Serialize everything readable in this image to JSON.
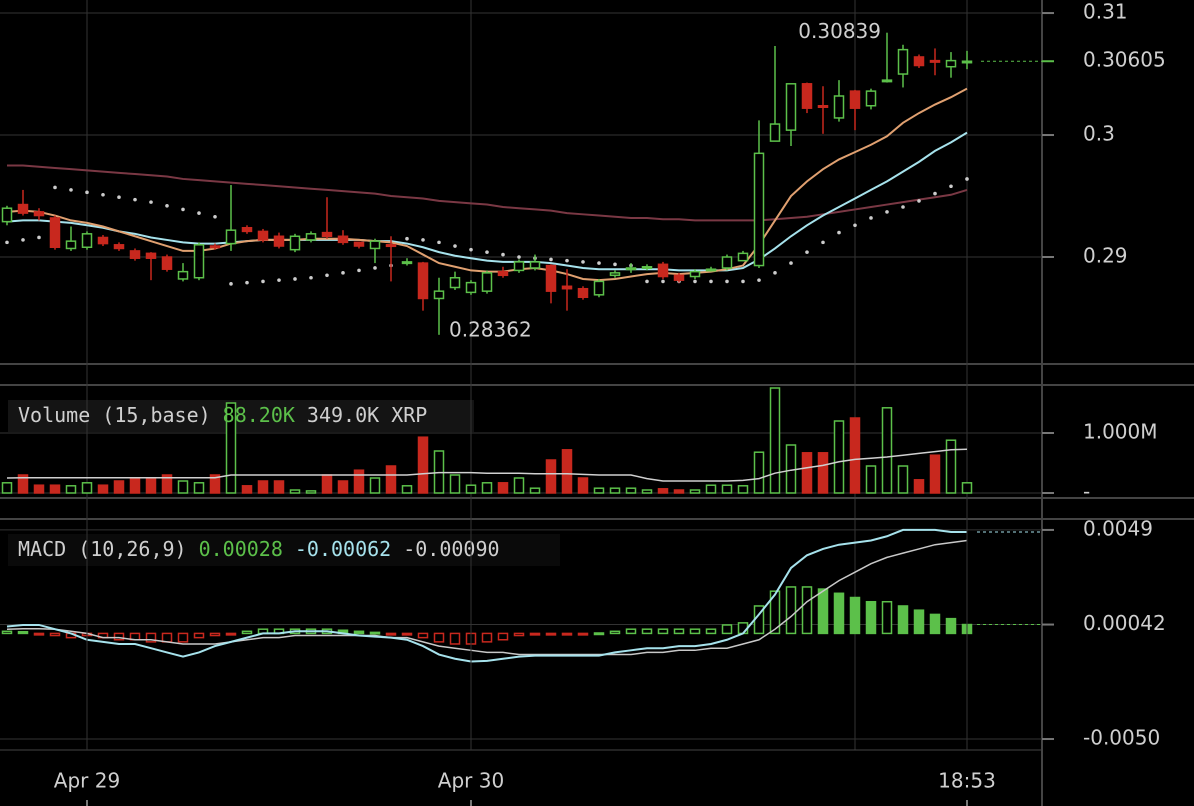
{
  "chart_data": [
    {
      "type": "candlestick",
      "open": [
        0.2929,
        0.2943,
        0.2937,
        0.2932,
        0.2907,
        0.2908,
        0.2916,
        0.291,
        0.2905,
        0.2903,
        0.29,
        0.2882,
        0.2883,
        0.2909,
        0.2911,
        0.2924,
        0.2921,
        0.2917,
        0.2906,
        0.2914,
        0.292,
        0.2917,
        0.2912,
        0.2907,
        0.291,
        0.2895,
        0.2895,
        0.2866,
        0.2875,
        0.2871,
        0.2872,
        0.2888,
        0.2889,
        0.2891,
        0.2893,
        0.2876,
        0.2874,
        0.2869,
        0.2885,
        0.289,
        0.2891,
        0.2894,
        0.2885,
        0.2884,
        0.2889,
        0.2891,
        0.2897,
        0.2893,
        0.2995,
        0.3004,
        0.3042,
        0.3024,
        0.3014,
        0.3036,
        0.3024,
        0.3044,
        0.305,
        0.3064,
        0.3061,
        0.3056,
        0.306
      ],
      "high": [
        0.2942,
        0.2955,
        0.294,
        0.2934,
        0.2925,
        0.2921,
        0.2918,
        0.2912,
        0.2907,
        0.2904,
        0.2902,
        0.2895,
        0.2912,
        0.2911,
        0.2959,
        0.2926,
        0.2923,
        0.292,
        0.2919,
        0.2921,
        0.2949,
        0.2922,
        0.2911,
        0.2915,
        0.2917,
        0.2899,
        0.2896,
        0.2883,
        0.2888,
        0.2881,
        0.2889,
        0.2892,
        0.2898,
        0.2902,
        0.2894,
        0.289,
        0.2876,
        0.2882,
        0.2889,
        0.2895,
        0.2894,
        0.2896,
        0.2887,
        0.289,
        0.2892,
        0.2902,
        0.2905,
        0.3012,
        0.3073,
        0.3042,
        0.3043,
        0.304,
        0.3045,
        0.3037,
        0.3038,
        0.30839,
        0.3074,
        0.3066,
        0.3071,
        0.3068,
        0.3069
      ],
      "low": [
        0.2926,
        0.2934,
        0.293,
        0.2906,
        0.2905,
        0.2906,
        0.2909,
        0.2905,
        0.2897,
        0.2881,
        0.2888,
        0.288,
        0.2881,
        0.2906,
        0.2905,
        0.2919,
        0.2912,
        0.2907,
        0.2904,
        0.2912,
        0.2915,
        0.291,
        0.2907,
        0.2895,
        0.288,
        0.2893,
        0.2856,
        0.28362,
        0.2873,
        0.2869,
        0.287,
        0.2883,
        0.2887,
        0.2889,
        0.2862,
        0.2856,
        0.2865,
        0.2867,
        0.2883,
        0.2887,
        0.2889,
        0.2882,
        0.2879,
        0.2882,
        0.2888,
        0.2889,
        0.2897,
        0.2891,
        0.2995,
        0.2991,
        0.3018,
        0.3001,
        0.3011,
        0.3004,
        0.3021,
        0.3043,
        0.3039,
        0.3055,
        0.3049,
        0.3047,
        0.3054
      ],
      "close": [
        0.294,
        0.2936,
        0.2934,
        0.2908,
        0.2913,
        0.2919,
        0.2911,
        0.2907,
        0.2899,
        0.2899,
        0.289,
        0.2888,
        0.291,
        0.2908,
        0.2922,
        0.2921,
        0.2914,
        0.2909,
        0.2917,
        0.2919,
        0.2917,
        0.2912,
        0.2909,
        0.2913,
        0.2909,
        0.2896,
        0.2866,
        0.2872,
        0.2883,
        0.2879,
        0.2887,
        0.2885,
        0.2896,
        0.2896,
        0.2872,
        0.2874,
        0.2867,
        0.288,
        0.2887,
        0.2891,
        0.2892,
        0.2884,
        0.2881,
        0.2888,
        0.289,
        0.29,
        0.2903,
        0.2985,
        0.3009,
        0.3042,
        0.3022,
        0.3023,
        0.3032,
        0.3022,
        0.3036,
        0.3045,
        0.307,
        0.3057,
        0.306,
        0.3061,
        0.30605
      ],
      "up_color": "#5cc04a",
      "down_color": "#c8281e",
      "overlays": [
        {
          "color": "#7a3844",
          "values": [
            0.2975,
            0.2975,
            0.2974,
            0.2973,
            0.2972,
            0.2971,
            0.297,
            0.2969,
            0.2968,
            0.2967,
            0.2966,
            0.2964,
            0.2963,
            0.2962,
            0.2961,
            0.296,
            0.2959,
            0.2958,
            0.2957,
            0.2956,
            0.2955,
            0.2954,
            0.2953,
            0.2952,
            0.295,
            0.2949,
            0.2948,
            0.2946,
            0.2945,
            0.2944,
            0.2943,
            0.2941,
            0.294,
            0.2939,
            0.2938,
            0.2936,
            0.2935,
            0.2934,
            0.2933,
            0.2932,
            0.2932,
            0.2931,
            0.2931,
            0.293,
            0.293,
            0.293,
            0.293,
            0.293,
            0.2931,
            0.2932,
            0.2933,
            0.2935,
            0.2937,
            0.2939,
            0.2941,
            0.2943,
            0.2945,
            0.2947,
            0.2949,
            0.2951,
            0.2955
          ]
        },
        {
          "color": "#a6e2ec",
          "values": [
            0.2929,
            0.293,
            0.293,
            0.2929,
            0.2928,
            0.2926,
            0.2924,
            0.2921,
            0.2919,
            0.2916,
            0.2914,
            0.2912,
            0.2911,
            0.2911,
            0.2912,
            0.2913,
            0.2914,
            0.2914,
            0.2914,
            0.2914,
            0.2914,
            0.2914,
            0.2914,
            0.2913,
            0.2913,
            0.2911,
            0.2908,
            0.2904,
            0.2901,
            0.2899,
            0.2897,
            0.2896,
            0.2896,
            0.2896,
            0.2895,
            0.2893,
            0.2891,
            0.289,
            0.289,
            0.289,
            0.289,
            0.289,
            0.2889,
            0.2889,
            0.2889,
            0.2889,
            0.2891,
            0.2898,
            0.2907,
            0.2917,
            0.2926,
            0.2934,
            0.2941,
            0.2948,
            0.2955,
            0.2962,
            0.297,
            0.2978,
            0.2987,
            0.2994,
            0.3002
          ]
        },
        {
          "color": "#e0a070",
          "values": [
            0.2937,
            0.2938,
            0.2937,
            0.2934,
            0.293,
            0.2928,
            0.2925,
            0.2921,
            0.2917,
            0.2913,
            0.2909,
            0.2905,
            0.2905,
            0.2907,
            0.2911,
            0.2913,
            0.2914,
            0.2914,
            0.2914,
            0.2915,
            0.2915,
            0.2915,
            0.2914,
            0.2913,
            0.2912,
            0.2909,
            0.2902,
            0.2895,
            0.2892,
            0.2889,
            0.2888,
            0.2888,
            0.289,
            0.2891,
            0.2889,
            0.2886,
            0.2882,
            0.2881,
            0.2882,
            0.2884,
            0.2886,
            0.2887,
            0.2886,
            0.2887,
            0.2888,
            0.289,
            0.2893,
            0.291,
            0.293,
            0.295,
            0.2962,
            0.2972,
            0.298,
            0.2986,
            0.2992,
            0.2999,
            0.301,
            0.3018,
            0.3025,
            0.3031,
            0.3038
          ]
        }
      ],
      "sar": {
        "color": "#cccccc",
        "values": [
          0.2912,
          0.2914,
          0.2916,
          0.2957,
          0.2955,
          0.2953,
          0.2951,
          0.2949,
          0.2947,
          0.2945,
          0.2942,
          0.2939,
          0.2936,
          0.2933,
          0.2878,
          0.2879,
          0.288,
          0.2881,
          0.2882,
          0.2883,
          0.2885,
          0.2887,
          0.2889,
          0.2891,
          0.2893,
          0.2915,
          0.2914,
          0.2912,
          0.2909,
          0.2906,
          0.2904,
          0.2902,
          0.29,
          0.2899,
          0.2898,
          0.2897,
          0.2896,
          0.2895,
          0.2894,
          0.2893,
          0.288,
          0.288,
          0.288,
          0.288,
          0.288,
          0.288,
          0.288,
          0.2881,
          0.2887,
          0.2895,
          0.2904,
          0.2912,
          0.292,
          0.2926,
          0.2932,
          0.2937,
          0.2941,
          0.2946,
          0.2952,
          0.2958,
          0.2964
        ]
      },
      "last": {
        "value": 0.30605,
        "color": "#5cc04a"
      },
      "annotations": [
        {
          "value": 0.30839,
          "x": 55
        },
        {
          "value": 0.28362,
          "x": 27
        }
      ],
      "ylim": [
        0.28131,
        0.31107
      ],
      "yticks": [
        0.29,
        0.3,
        0.31
      ],
      "grid": true
    },
    {
      "type": "bar",
      "legend": [
        {
          "text": "Volume (15,base)",
          "color": "#cfcfcf"
        },
        {
          "text": "88.20K",
          "color": "#5cc04a"
        },
        {
          "text": "349.0K XRP",
          "color": "#cfcfcf"
        }
      ],
      "values": [
        170000,
        300000,
        130000,
        130000,
        120000,
        170000,
        130000,
        200000,
        230000,
        230000,
        300000,
        200000,
        170000,
        300000,
        1500000,
        120000,
        200000,
        200000,
        50000,
        35000,
        300000,
        200000,
        380000,
        250000,
        450000,
        120000,
        930000,
        700000,
        300000,
        130000,
        170000,
        170000,
        250000,
        80000,
        550000,
        720000,
        250000,
        80000,
        80000,
        80000,
        50000,
        70000,
        50000,
        50000,
        130000,
        130000,
        120000,
        680000,
        1750000,
        800000,
        670000,
        670000,
        1200000,
        1250000,
        450000,
        1420000,
        450000,
        220000,
        630000,
        880000,
        170000
      ],
      "ma": {
        "color": "#d0d0d0",
        "values": [
          250000,
          255000,
          255000,
          255000,
          255000,
          255000,
          255000,
          255000,
          255000,
          255000,
          255000,
          255000,
          255000,
          255000,
          300000,
          300000,
          300000,
          300000,
          300000,
          300000,
          300000,
          300000,
          300000,
          300000,
          300000,
          300000,
          320000,
          340000,
          340000,
          340000,
          330000,
          330000,
          330000,
          320000,
          320000,
          320000,
          310000,
          300000,
          300000,
          300000,
          240000,
          200000,
          200000,
          200000,
          200000,
          200000,
          210000,
          240000,
          330000,
          380000,
          420000,
          460000,
          520000,
          560000,
          580000,
          600000,
          630000,
          660000,
          690000,
          720000,
          730000
        ]
      },
      "ylim": [
        -66667,
        1800000
      ],
      "yticks": [
        {
          "value": 0,
          "label": "-"
        },
        {
          "value": 1000000,
          "label": "1.000M"
        }
      ],
      "grid": true
    },
    {
      "type": "macd",
      "legend": [
        {
          "text": "MACD (10,26,9)",
          "color": "#cfcfcf"
        },
        {
          "text": "0.00028",
          "color": "#5cc04a"
        },
        {
          "text": "-0.00062",
          "color": "#a6e2ec"
        },
        {
          "text": "-0.00090",
          "color": "#cfcfcf"
        }
      ],
      "histogram": {
        "up_color": "#5cc04a",
        "down_color": "#c8281e",
        "values": [
          0.0001,
          8e-05,
          -5e-05,
          -0.0001,
          -0.0002,
          -0.0001,
          -0.0002,
          -0.0003,
          -0.0003,
          -0.0004,
          -0.0004,
          -0.0004,
          -0.0002,
          -0.0001,
          -5e-05,
          0.0001,
          0.0002,
          0.0002,
          0.0002,
          0.0002,
          0.0002,
          0.00015,
          0.0001,
          5e-05,
          -3e-05,
          -5e-05,
          -0.0002,
          -0.0004,
          -0.0005,
          -0.0005,
          -0.0004,
          -0.0003,
          -0.0001,
          -5e-05,
          -3e-05,
          -2e-05,
          -2e-05,
          2e-05,
          0.0001,
          0.0002,
          0.0002,
          0.0002,
          0.0002,
          0.0002,
          0.0002,
          0.0004,
          0.0005,
          0.0013,
          0.002,
          0.0022,
          0.0022,
          0.0021,
          0.0019,
          0.0017,
          0.0015,
          0.0015,
          0.0013,
          0.0011,
          0.0009,
          0.0007,
          0.00042
        ]
      },
      "macd": {
        "color": "#a6e2ec",
        "values": [
          0.00033,
          0.0004,
          0.0004,
          0.0002,
          0,
          -0.0003,
          -0.0004,
          -0.0005,
          -0.0005,
          -0.0007,
          -0.0009,
          -0.0011,
          -0.0009,
          -0.0006,
          -0.0004,
          -0.0002,
          0,
          0,
          0.0001,
          0.0001,
          0.0001,
          0,
          -0.0001,
          -0.00015,
          -0.0002,
          -0.0003,
          -0.0006,
          -0.001,
          -0.0012,
          -0.00133,
          -0.0013,
          -0.0012,
          -0.0011,
          -0.00105,
          -0.00105,
          -0.00105,
          -0.00105,
          -0.00105,
          -0.0009,
          -0.0008,
          -0.0007,
          -0.0007,
          -0.0006,
          -0.0006,
          -0.0005,
          -0.0003,
          0,
          0.0009,
          0.00184,
          0.0031,
          0.0037,
          0.004,
          0.0042,
          0.0043,
          0.0044,
          0.0046,
          0.0049,
          0.0049,
          0.0049,
          0.0048,
          0.0048
        ]
      },
      "signal": {
        "color": "#c8c8c8",
        "values": [
          0.0002,
          0.00022,
          0.00022,
          0.0002,
          0.0001,
          0,
          -0.0002,
          -0.0002,
          -0.0003,
          -0.0003,
          -0.0004,
          -0.0005,
          -0.0005,
          -0.0005,
          -0.0004,
          -0.0003,
          -0.0002,
          -0.0002,
          -0.0001,
          -0.0001,
          -0.0001,
          -0.0001,
          -0.0001,
          -0.0001,
          -0.0002,
          -0.0002,
          -0.0004,
          -0.0006,
          -0.0007,
          -0.0008,
          -0.0009,
          -0.0009,
          -0.001,
          -0.001,
          -0.001,
          -0.001,
          -0.001,
          -0.001,
          -0.001,
          -0.001,
          -0.0009,
          -0.0009,
          -0.0008,
          -0.0008,
          -0.0007,
          -0.0007,
          -0.0005,
          -0.0003,
          0.0002,
          0.0008,
          0.0015,
          0.002,
          0.0025,
          0.0029,
          0.0033,
          0.0036,
          0.0038,
          0.004,
          0.0042,
          0.0043,
          0.0044
        ]
      },
      "categories": [
        null,
        null,
        null,
        null,
        null,
        "Apr 29",
        null,
        null,
        null,
        null,
        null,
        null,
        null,
        null,
        null,
        null,
        null,
        null,
        null,
        null,
        null,
        null,
        null,
        null,
        null,
        null,
        null,
        null,
        null,
        "Apr 30",
        null,
        null,
        null,
        null,
        null,
        null,
        null,
        null,
        null,
        null,
        null,
        null,
        null,
        null,
        null,
        null,
        null,
        null,
        null,
        null,
        null,
        null,
        null,
        null,
        null,
        null,
        null,
        null,
        null,
        null,
        "18:53"
      ],
      "ylim": [
        -0.00552,
        0.00537
      ],
      "yticks": [
        {
          "value": -0.005,
          "label": "-0.0050"
        },
        0.00042,
        0.0049
      ],
      "grid": true
    }
  ]
}
